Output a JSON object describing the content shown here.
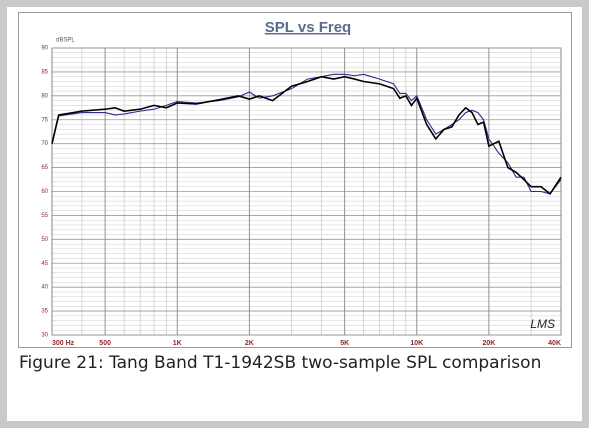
{
  "chart_data": {
    "type": "line",
    "title": "SPL vs Freq",
    "ylabel": "dBSPL",
    "watermark": "LMS",
    "caption": "Figure 21: Tang Band T1-1942SB two-sample SPL comparison",
    "xscale": "log",
    "grid": true,
    "x": [
      300,
      320,
      400,
      500,
      550,
      600,
      700,
      800,
      900,
      1000,
      1200,
      1500,
      1800,
      2000,
      2200,
      2500,
      3000,
      3500,
      4000,
      4500,
      5000,
      5500,
      6000,
      7000,
      8000,
      8500,
      9000,
      9500,
      10000,
      11000,
      12000,
      13000,
      14000,
      15000,
      16000,
      17000,
      18000,
      19000,
      20000,
      22000,
      24000,
      26000,
      28000,
      30000,
      33000,
      36000,
      40000
    ],
    "series": [
      {
        "color": "#000000",
        "values": [
          70,
          76,
          76.8,
          77.2,
          77.5,
          76.8,
          77.2,
          78,
          77.5,
          78.5,
          78.3,
          79.2,
          80,
          79.3,
          80,
          79,
          82,
          83,
          84,
          83.5,
          84,
          83.5,
          83,
          82.5,
          81.5,
          79.5,
          80,
          78,
          79.5,
          74,
          71,
          73,
          73.5,
          76,
          77.5,
          76.5,
          74,
          74.5,
          69.5,
          70.5,
          65,
          64,
          62.5,
          61,
          61,
          59.5,
          63
        ]
      },
      {
        "color": "#2a2a8c",
        "values": [
          70,
          75.8,
          76.5,
          76.5,
          76,
          76.2,
          76.8,
          77.2,
          78,
          78.8,
          78.5,
          79,
          79.8,
          80.8,
          79.5,
          80,
          81.5,
          83.5,
          84,
          84.5,
          84.5,
          84.2,
          84.5,
          83.5,
          82.5,
          80.5,
          80.5,
          79,
          80,
          75,
          72,
          73,
          74,
          75,
          76.5,
          77,
          76.5,
          75,
          71,
          68,
          66,
          63,
          63,
          60,
          60,
          59.5,
          62.5
        ]
      }
    ],
    "xlim": [
      300,
      40000
    ],
    "xticks": [
      {
        "value": 300,
        "label": "300 Hz"
      },
      500,
      {
        "value": 1000,
        "label": "1K"
      },
      {
        "value": 2000,
        "label": "2K"
      },
      {
        "value": 5000,
        "label": "5K"
      },
      {
        "value": 10000,
        "label": "10K"
      },
      {
        "value": 20000,
        "label": "20K"
      },
      {
        "value": 40000,
        "label": "40K"
      }
    ],
    "ylim": [
      30,
      90
    ],
    "yticks": [
      30,
      35,
      40,
      45,
      50,
      55,
      60,
      65,
      70,
      75,
      80,
      85,
      90
    ]
  }
}
